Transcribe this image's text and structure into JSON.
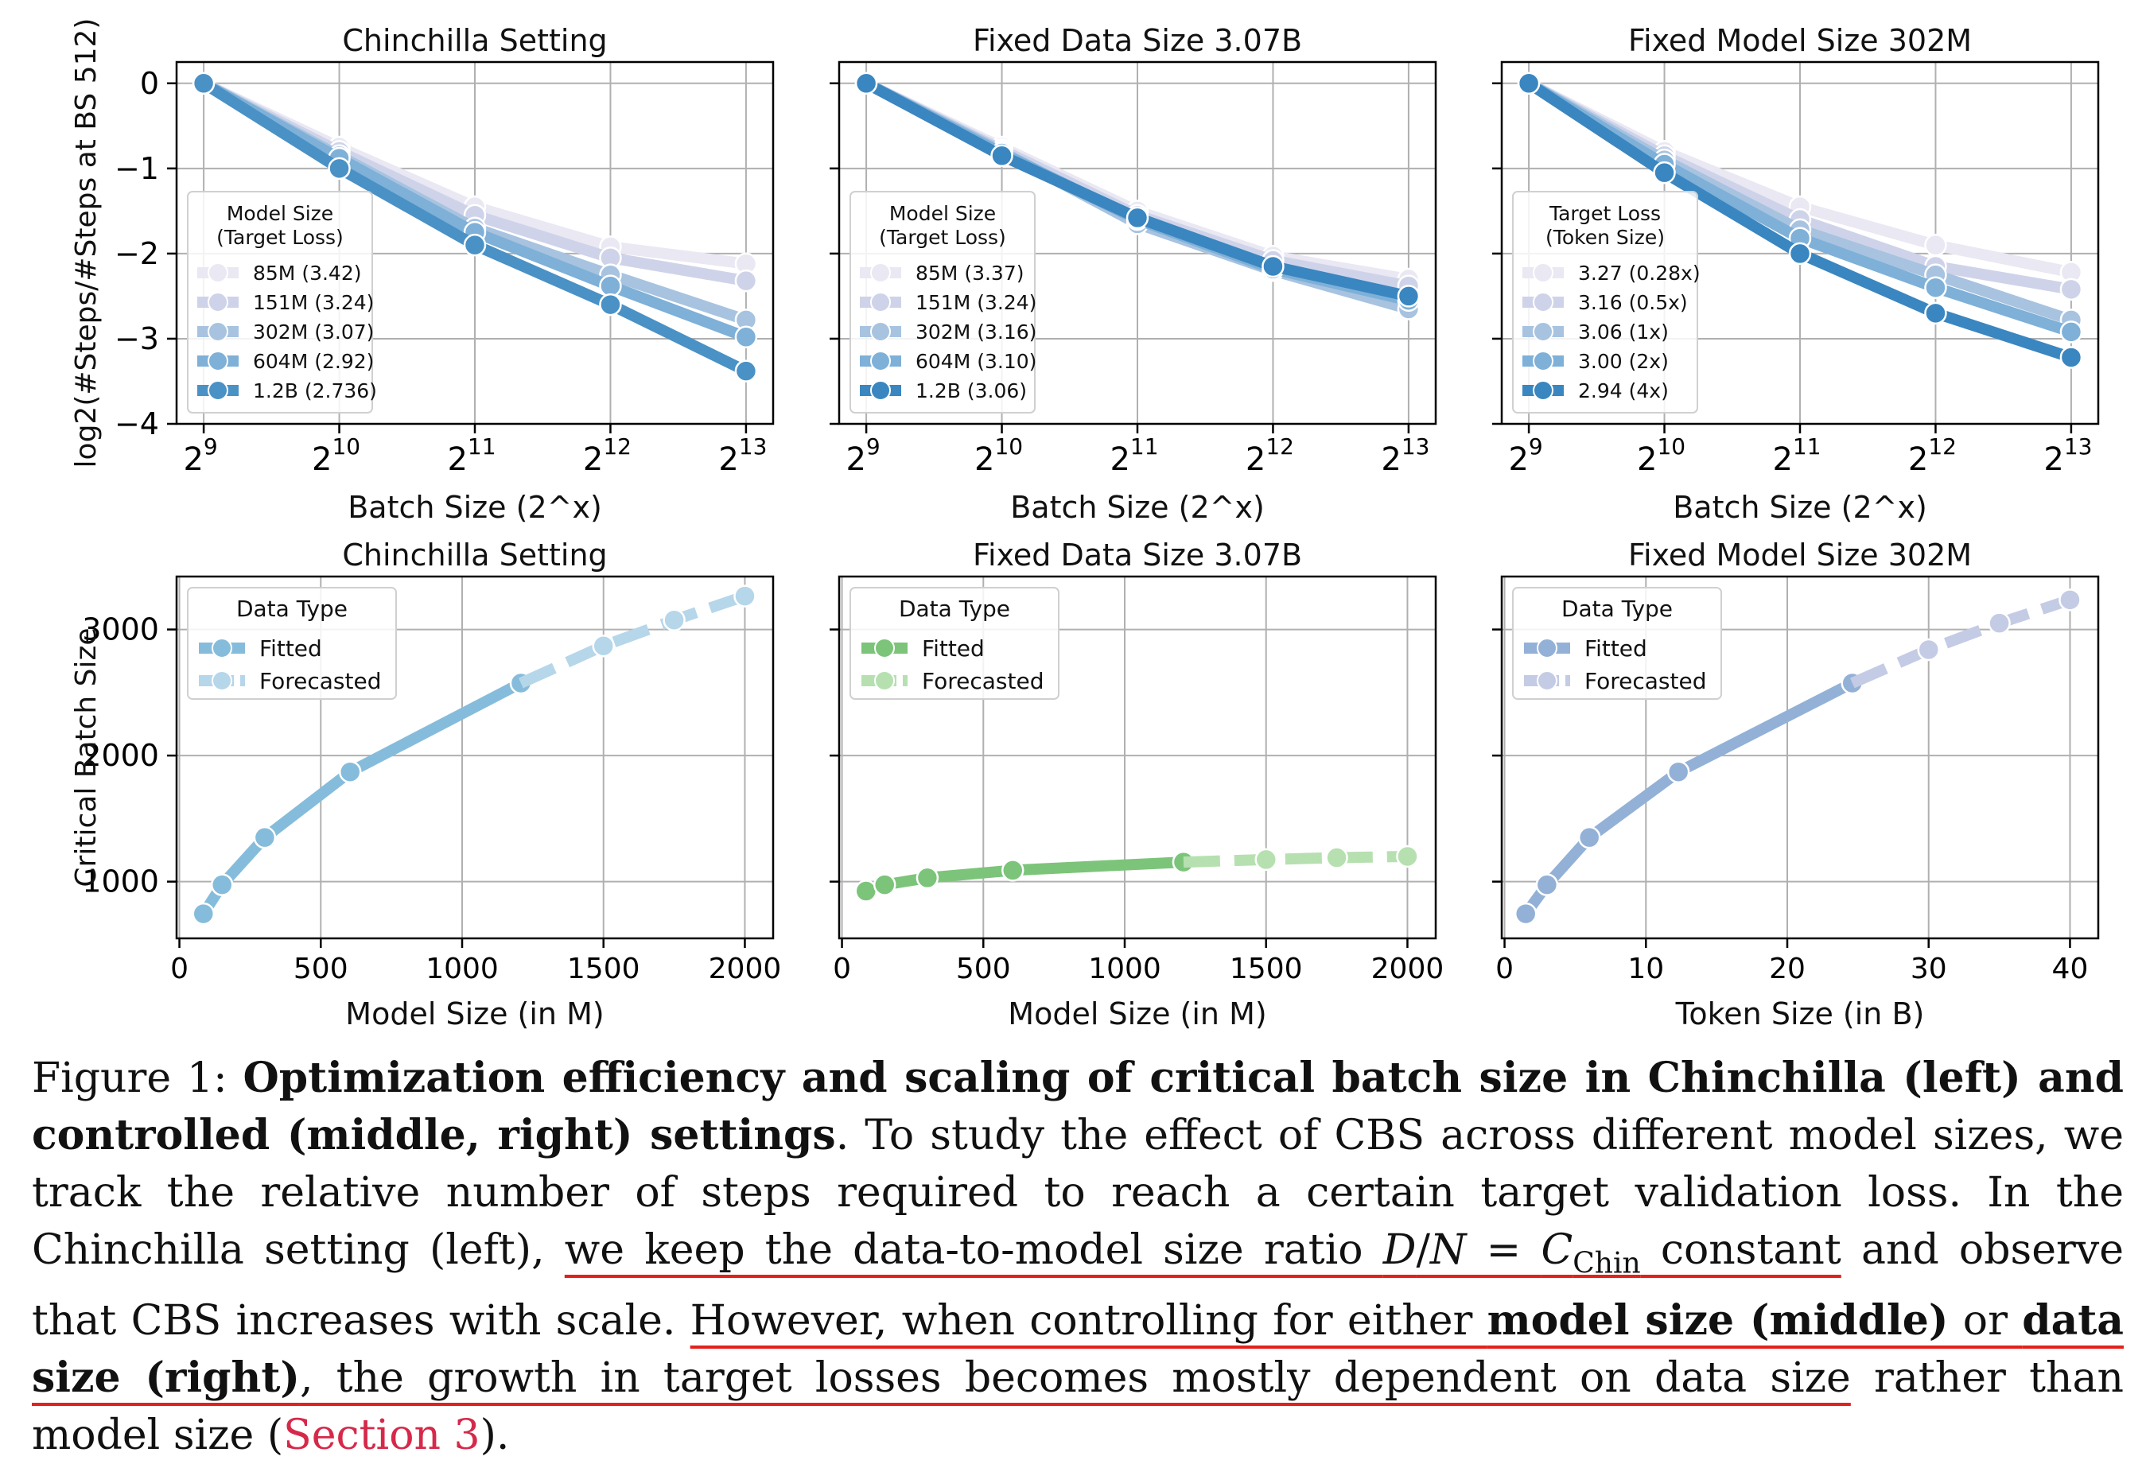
{
  "chart_data": [
    {
      "type": "line",
      "title": "Chinchilla Setting",
      "xlabel": "Batch Size (2^x)",
      "ylabel": "log2(#Steps/#Steps at BS 512)",
      "x": [
        9,
        10,
        11,
        12,
        13
      ],
      "xtick_labels": [
        "9",
        "10",
        "11",
        "12",
        "13"
      ],
      "xlim": [
        8.8,
        13.2
      ],
      "ylim": [
        -4,
        0.25
      ],
      "yticks": [
        0,
        -1,
        -2,
        -3,
        -4
      ],
      "ytick_labels": [
        "0",
        "−1",
        "−2",
        "−3",
        "−4"
      ],
      "legend": {
        "title_line1": "Model Size",
        "title_line2": "(Target Loss)",
        "position": "lower-left"
      },
      "series": [
        {
          "name": "85M (3.42)",
          "color": "#e9e8f3",
          "values": [
            0,
            -0.75,
            -1.45,
            -1.92,
            -2.12
          ]
        },
        {
          "name": "151M (3.24)",
          "color": "#cfd3e9",
          "values": [
            0,
            -0.8,
            -1.55,
            -2.05,
            -2.32
          ]
        },
        {
          "name": "302M (3.07)",
          "color": "#a7c3e0",
          "values": [
            0,
            -0.85,
            -1.7,
            -2.25,
            -2.78
          ]
        },
        {
          "name": "604M (2.92)",
          "color": "#7eb0d8",
          "values": [
            0,
            -0.88,
            -1.75,
            -2.38,
            -2.98
          ]
        },
        {
          "name": "1.2B (2.736)",
          "color": "#4a91c5",
          "values": [
            0,
            -1.0,
            -1.9,
            -2.6,
            -3.38
          ]
        }
      ]
    },
    {
      "type": "line",
      "title": "Fixed Data Size 3.07B",
      "xlabel": "Batch Size (2^x)",
      "x": [
        9,
        10,
        11,
        12,
        13
      ],
      "xtick_labels": [
        "9",
        "10",
        "11",
        "12",
        "13"
      ],
      "xlim": [
        8.8,
        13.2
      ],
      "ylim": [
        -4,
        0.25
      ],
      "legend": {
        "title_line1": "Model Size",
        "title_line2": "(Target Loss)",
        "position": "lower-left"
      },
      "series": [
        {
          "name": "85M (3.37)",
          "color": "#e9e8f3",
          "values": [
            0,
            -0.75,
            -1.5,
            -2.03,
            -2.3
          ]
        },
        {
          "name": "151M (3.24)",
          "color": "#cfd3e9",
          "values": [
            0,
            -0.78,
            -1.55,
            -2.08,
            -2.38
          ]
        },
        {
          "name": "302M (3.16)",
          "color": "#a7c3e0",
          "values": [
            0,
            -0.8,
            -1.65,
            -2.2,
            -2.65
          ]
        },
        {
          "name": "604M (3.10)",
          "color": "#7eb0d8",
          "values": [
            0,
            -0.82,
            -1.6,
            -2.18,
            -2.55
          ]
        },
        {
          "name": "1.2B (3.06)",
          "color": "#3a86c0",
          "values": [
            0,
            -0.85,
            -1.58,
            -2.15,
            -2.5
          ]
        }
      ]
    },
    {
      "type": "line",
      "title": "Fixed Model Size 302M",
      "xlabel": "Batch Size (2^x)",
      "x": [
        9,
        10,
        11,
        12,
        13
      ],
      "xtick_labels": [
        "9",
        "10",
        "11",
        "12",
        "13"
      ],
      "xlim": [
        8.8,
        13.2
      ],
      "ylim": [
        -4,
        0.25
      ],
      "legend": {
        "title_line1": "Target Loss",
        "title_line2": "(Token Size)",
        "position": "lower-left"
      },
      "series": [
        {
          "name": "3.27 (0.28x)",
          "color": "#e9e8f3",
          "values": [
            0,
            -0.8,
            -1.45,
            -1.9,
            -2.22
          ]
        },
        {
          "name": "3.16 (0.5x)",
          "color": "#cfd3e9",
          "values": [
            0,
            -0.85,
            -1.6,
            -2.15,
            -2.42
          ]
        },
        {
          "name": "3.06 (1x)",
          "color": "#a7c3e0",
          "values": [
            0,
            -0.9,
            -1.72,
            -2.25,
            -2.78
          ]
        },
        {
          "name": "3.00 (2x)",
          "color": "#7eb0d8",
          "values": [
            0,
            -0.95,
            -1.82,
            -2.4,
            -2.92
          ]
        },
        {
          "name": "2.94 (4x)",
          "color": "#3a86c0",
          "values": [
            0,
            -1.05,
            -2.0,
            -2.7,
            -3.22
          ]
        }
      ]
    },
    {
      "type": "line",
      "title": "Chinchilla Setting",
      "xlabel": "Model Size (in M)",
      "ylabel": "Critical Batch Size",
      "xlim": [
        -10,
        2100
      ],
      "ylim": [
        550,
        3420
      ],
      "xticks": [
        0,
        500,
        1000,
        1500,
        2000
      ],
      "yticks": [
        1000,
        2000,
        3000
      ],
      "legend": {
        "title": "Data Type",
        "position": "upper-left"
      },
      "series": [
        {
          "name": "Fitted",
          "color": "#86bcdb",
          "dashed": false,
          "x": [
            85,
            151,
            302,
            604,
            1208
          ],
          "values": [
            745,
            975,
            1350,
            1870,
            2575
          ]
        },
        {
          "name": "Forecasted",
          "color": "#b6d6ea",
          "dashed": true,
          "x": [
            1208,
            1500,
            1750,
            2000
          ],
          "values": [
            2575,
            2870,
            3075,
            3265
          ]
        }
      ]
    },
    {
      "type": "line",
      "title": "Fixed Data Size 3.07B",
      "xlabel": "Model Size (in M)",
      "xlim": [
        -10,
        2100
      ],
      "ylim": [
        550,
        3420
      ],
      "xticks": [
        0,
        500,
        1000,
        1500,
        2000
      ],
      "legend": {
        "title": "Data Type",
        "position": "upper-left"
      },
      "series": [
        {
          "name": "Fitted",
          "color": "#7cc47a",
          "dashed": false,
          "x": [
            85,
            151,
            302,
            604,
            1208
          ],
          "values": [
            925,
            975,
            1030,
            1090,
            1155
          ]
        },
        {
          "name": "Forecasted",
          "color": "#b6e0b0",
          "dashed": true,
          "x": [
            1208,
            1500,
            1750,
            2000
          ],
          "values": [
            1155,
            1175,
            1190,
            1200
          ]
        }
      ]
    },
    {
      "type": "line",
      "title": "Fixed Model Size 302M",
      "xlabel": "Token Size (in B)",
      "xlim": [
        -0.2,
        42
      ],
      "ylim": [
        550,
        3420
      ],
      "xticks": [
        0,
        10,
        20,
        30,
        40
      ],
      "legend": {
        "title": "Data Type",
        "position": "upper-left"
      },
      "series": [
        {
          "name": "Fitted",
          "color": "#93b1d6",
          "dashed": false,
          "x": [
            1.5,
            3,
            6,
            12.3,
            24.6
          ],
          "values": [
            745,
            975,
            1350,
            1870,
            2575
          ]
        },
        {
          "name": "Forecasted",
          "color": "#c4cbe5",
          "dashed": true,
          "x": [
            24.6,
            30,
            35,
            40
          ],
          "values": [
            2575,
            2840,
            3050,
            3235
          ]
        }
      ]
    }
  ],
  "caption": {
    "label": "Figure 1:",
    "bold": "Optimization efficiency and scaling of critical batch size in Chinchilla (left) and con­trolled (middle, right) settings",
    "t1": ". To study the effect of CBS across different model sizes, we track the relative number of steps required to reach a certain target validation loss. In the Chinchilla setting (left), ",
    "u1a": "we keep the data-to-model size ratio ",
    "math_D": "D",
    "math_slash": "/",
    "math_N": "N",
    "math_eq": " = ",
    "math_C": "C",
    "math_sub": "Chin",
    "u1b": " constant",
    "t2": " and observe that CBS increases with scale. ",
    "u2a": "However, when controlling for either ",
    "u2b": "model size (middle)",
    "u2c": " or ",
    "u2d": "data size (right)",
    "u2e": ", the growth in target losses becomes mostly dependent on data size",
    "t3": " rather than model size (",
    "link": "Section 3",
    "t4": ")."
  }
}
